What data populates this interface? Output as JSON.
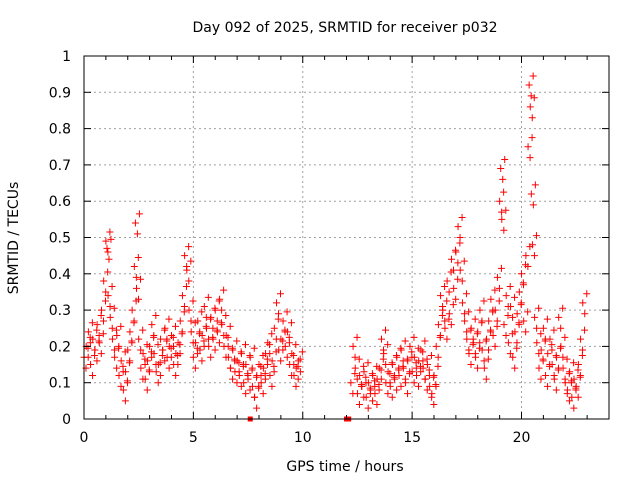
{
  "chart_data": {
    "type": "scatter",
    "title": "Day 092 of 2025, SRMTID for receiver p032",
    "xlabel": "GPS time / hours",
    "ylabel": "SRMTID / TECUs",
    "xlim": [
      0,
      24
    ],
    "ylim": [
      0,
      1
    ],
    "x_ticks": [
      "0",
      "5",
      "10",
      "15",
      "20"
    ],
    "y_ticks": [
      "0",
      "0.1",
      "0.2",
      "0.3",
      "0.4",
      "0.5",
      "0.6",
      "0.7",
      "0.8",
      "0.9",
      "1"
    ],
    "grid": true,
    "marker": "plus",
    "color": "#ff0000",
    "zero_markers_x": [
      7.6,
      12.0,
      12.1
    ],
    "series": [
      {
        "name": "SRMTID",
        "points": [
          [
            0.0,
            0.17
          ],
          [
            0.1,
            0.2
          ],
          [
            0.2,
            0.24
          ],
          [
            0.3,
            0.15
          ],
          [
            0.4,
            0.22
          ],
          [
            0.5,
            0.19
          ],
          [
            0.6,
            0.26
          ],
          [
            0.7,
            0.21
          ],
          [
            0.8,
            0.3
          ],
          [
            0.9,
            0.38
          ],
          [
            1.0,
            0.49
          ],
          [
            1.05,
            0.47
          ],
          [
            1.1,
            0.34
          ],
          [
            1.2,
            0.28
          ],
          [
            1.3,
            0.22
          ],
          [
            1.4,
            0.17
          ],
          [
            1.5,
            0.23
          ],
          [
            1.6,
            0.12
          ],
          [
            1.7,
            0.16
          ],
          [
            1.8,
            0.08
          ],
          [
            1.9,
            0.13
          ],
          [
            2.0,
            0.19
          ],
          [
            2.1,
            0.24
          ],
          [
            2.2,
            0.3
          ],
          [
            2.3,
            0.42
          ],
          [
            2.35,
            0.54
          ],
          [
            2.4,
            0.36
          ],
          [
            2.5,
            0.22
          ],
          [
            2.6,
            0.14
          ],
          [
            2.7,
            0.18
          ],
          [
            2.8,
            0.11
          ],
          [
            2.9,
            0.16
          ],
          [
            3.0,
            0.2
          ],
          [
            3.1,
            0.26
          ],
          [
            3.2,
            0.18
          ],
          [
            3.3,
            0.13
          ],
          [
            3.4,
            0.15
          ],
          [
            3.5,
            0.22
          ],
          [
            3.6,
            0.19
          ],
          [
            3.7,
            0.25
          ],
          [
            3.8,
            0.17
          ],
          [
            3.9,
            0.2
          ],
          [
            4.0,
            0.23
          ],
          [
            4.1,
            0.15
          ],
          [
            4.2,
            0.18
          ],
          [
            4.3,
            0.21
          ],
          [
            4.4,
            0.27
          ],
          [
            4.5,
            0.34
          ],
          [
            4.6,
            0.45
          ],
          [
            4.7,
            0.41
          ],
          [
            4.8,
            0.3
          ],
          [
            4.9,
            0.24
          ],
          [
            5.0,
            0.17
          ],
          [
            5.1,
            0.21
          ],
          [
            5.2,
            0.27
          ],
          [
            5.3,
            0.19
          ],
          [
            5.4,
            0.23
          ],
          [
            5.5,
            0.31
          ],
          [
            5.6,
            0.25
          ],
          [
            5.7,
            0.2
          ],
          [
            5.8,
            0.28
          ],
          [
            5.9,
            0.22
          ],
          [
            6.0,
            0.3
          ],
          [
            6.1,
            0.24
          ],
          [
            6.2,
            0.33
          ],
          [
            6.3,
            0.26
          ],
          [
            6.4,
            0.2
          ],
          [
            6.5,
            0.23
          ],
          [
            6.6,
            0.17
          ],
          [
            6.7,
            0.14
          ],
          [
            6.8,
            0.19
          ],
          [
            6.9,
            0.13
          ],
          [
            7.0,
            0.16
          ],
          [
            7.1,
            0.12
          ],
          [
            7.2,
            0.18
          ],
          [
            7.3,
            0.1
          ],
          [
            7.4,
            0.15
          ],
          [
            7.5,
            0.11
          ],
          [
            7.6,
            0.17
          ],
          [
            7.7,
            0.09
          ],
          [
            7.8,
            0.06
          ],
          [
            7.9,
            0.12
          ],
          [
            8.0,
            0.15
          ],
          [
            8.1,
            0.1
          ],
          [
            8.2,
            0.14
          ],
          [
            8.3,
            0.18
          ],
          [
            8.4,
            0.21
          ],
          [
            8.5,
            0.12
          ],
          [
            8.6,
            0.16
          ],
          [
            8.7,
            0.25
          ],
          [
            8.8,
            0.32
          ],
          [
            8.9,
            0.19
          ],
          [
            9.0,
            0.22
          ],
          [
            9.1,
            0.27
          ],
          [
            9.2,
            0.2
          ],
          [
            9.3,
            0.24
          ],
          [
            9.4,
            0.15
          ],
          [
            9.5,
            0.18
          ],
          [
            9.6,
            0.12
          ],
          [
            9.7,
            0.14
          ],
          [
            9.8,
            0.16
          ],
          [
            12.2,
            0.1
          ],
          [
            12.3,
            0.2
          ],
          [
            12.4,
            0.14
          ],
          [
            12.5,
            0.07
          ],
          [
            12.6,
            0.12
          ],
          [
            12.7,
            0.09
          ],
          [
            12.8,
            0.13
          ],
          [
            12.9,
            0.06
          ],
          [
            13.0,
            0.1
          ],
          [
            13.1,
            0.08
          ],
          [
            13.2,
            0.12
          ],
          [
            13.3,
            0.07
          ],
          [
            13.4,
            0.11
          ],
          [
            13.5,
            0.14
          ],
          [
            13.6,
            0.22
          ],
          [
            13.7,
            0.18
          ],
          [
            13.8,
            0.1
          ],
          [
            13.9,
            0.13
          ],
          [
            14.0,
            0.09
          ],
          [
            14.1,
            0.15
          ],
          [
            14.2,
            0.11
          ],
          [
            14.3,
            0.17
          ],
          [
            14.4,
            0.12
          ],
          [
            14.5,
            0.19
          ],
          [
            14.6,
            0.14
          ],
          [
            14.7,
            0.1
          ],
          [
            14.8,
            0.16
          ],
          [
            14.9,
            0.2
          ],
          [
            15.0,
            0.13
          ],
          [
            15.1,
            0.17
          ],
          [
            15.2,
            0.12
          ],
          [
            15.3,
            0.16
          ],
          [
            15.4,
            0.19
          ],
          [
            15.5,
            0.14
          ],
          [
            15.6,
            0.11
          ],
          [
            15.7,
            0.15
          ],
          [
            15.8,
            0.09
          ],
          [
            15.9,
            0.07
          ],
          [
            16.0,
            0.12
          ],
          [
            16.1,
            0.2
          ],
          [
            16.2,
            0.26
          ],
          [
            16.3,
            0.34
          ],
          [
            16.4,
            0.3
          ],
          [
            16.5,
            0.25
          ],
          [
            16.6,
            0.38
          ],
          [
            16.7,
            0.29
          ],
          [
            16.8,
            0.44
          ],
          [
            16.9,
            0.36
          ],
          [
            17.0,
            0.46
          ],
          [
            17.1,
            0.53
          ],
          [
            17.2,
            0.41
          ],
          [
            17.3,
            0.32
          ],
          [
            17.4,
            0.27
          ],
          [
            17.5,
            0.22
          ],
          [
            17.6,
            0.18
          ],
          [
            17.7,
            0.25
          ],
          [
            17.8,
            0.21
          ],
          [
            17.9,
            0.17
          ],
          [
            18.0,
            0.24
          ],
          [
            18.1,
            0.3
          ],
          [
            18.2,
            0.19
          ],
          [
            18.3,
            0.14
          ],
          [
            18.4,
            0.22
          ],
          [
            18.5,
            0.27
          ],
          [
            18.6,
            0.33
          ],
          [
            18.7,
            0.23
          ],
          [
            18.8,
            0.3
          ],
          [
            18.9,
            0.39
          ],
          [
            19.0,
            0.6
          ],
          [
            19.05,
            0.69
          ],
          [
            19.1,
            0.55
          ],
          [
            19.2,
            0.26
          ],
          [
            19.3,
            0.34
          ],
          [
            19.4,
            0.21
          ],
          [
            19.5,
            0.31
          ],
          [
            19.6,
            0.17
          ],
          [
            19.7,
            0.24
          ],
          [
            19.8,
            0.29
          ],
          [
            19.9,
            0.35
          ],
          [
            20.0,
            0.4
          ],
          [
            20.1,
            0.27
          ],
          [
            20.2,
            0.45
          ],
          [
            20.3,
            0.75
          ],
          [
            20.35,
            0.92
          ],
          [
            20.4,
            0.86
          ],
          [
            20.45,
            0.62
          ],
          [
            20.5,
            0.48
          ],
          [
            20.6,
            0.28
          ],
          [
            20.7,
            0.21
          ],
          [
            20.8,
            0.14
          ],
          [
            20.9,
            0.19
          ],
          [
            21.0,
            0.25
          ],
          [
            21.1,
            0.12
          ],
          [
            21.2,
            0.18
          ],
          [
            21.3,
            0.22
          ],
          [
            21.4,
            0.15
          ],
          [
            21.5,
            0.11
          ],
          [
            21.6,
            0.17
          ],
          [
            21.7,
            0.28
          ],
          [
            21.8,
            0.2
          ],
          [
            21.9,
            0.14
          ],
          [
            22.0,
            0.1
          ],
          [
            22.1,
            0.08
          ],
          [
            22.2,
            0.13
          ],
          [
            22.3,
            0.06
          ],
          [
            22.4,
            0.11
          ],
          [
            22.5,
            0.09
          ],
          [
            22.6,
            0.15
          ],
          [
            22.7,
            0.22
          ],
          [
            22.8,
            0.32
          ]
        ]
      }
    ]
  }
}
